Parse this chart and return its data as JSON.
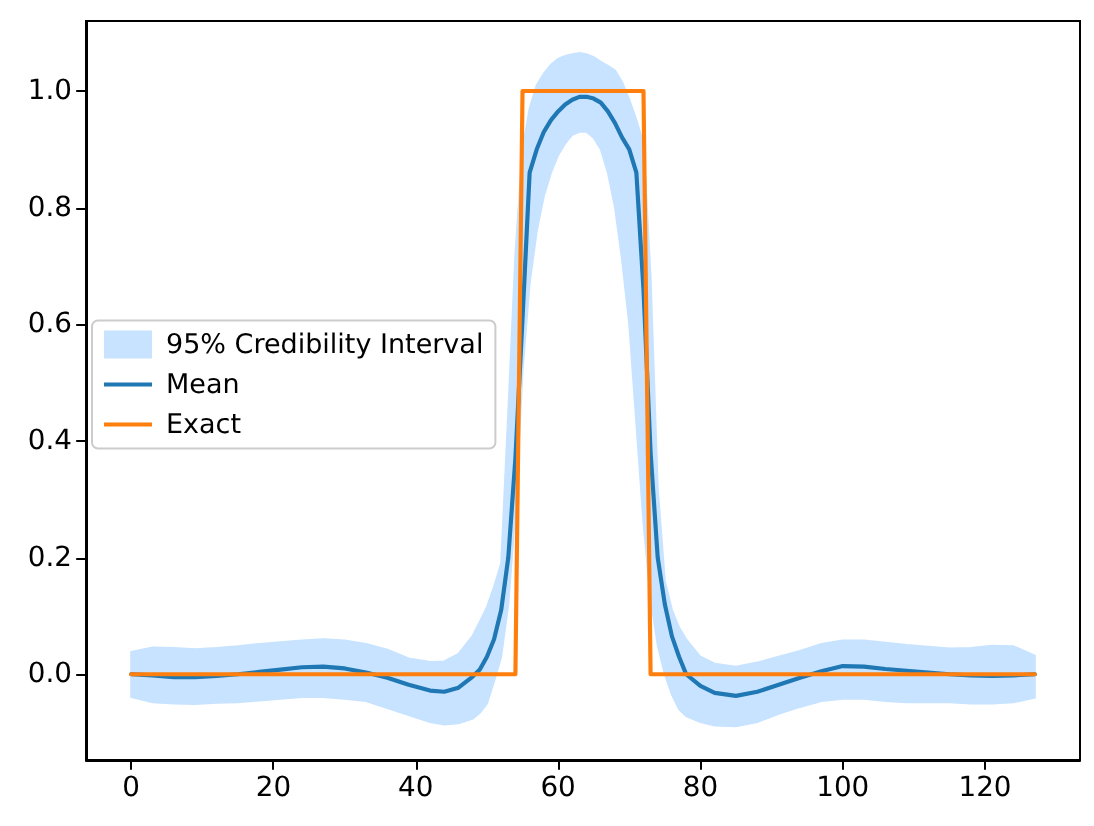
{
  "chart_data": {
    "type": "line",
    "xlim": [
      -6.35,
      133.35
    ],
    "xticks": [
      0,
      20,
      40,
      60,
      80,
      100,
      120
    ],
    "ylim": [
      -0.147,
      1.12
    ],
    "yticks": [
      {
        "value": 0,
        "label": "0.0"
      },
      0.2,
      0.4,
      0.6,
      0.8,
      {
        "value": 1,
        "label": "1.0"
      }
    ],
    "legend": "left",
    "series": [
      {
        "name": "95% Credibility Interval",
        "type": "area",
        "color": "#c7e3ff",
        "x": [
          0,
          3,
          6,
          9,
          12,
          15,
          18,
          21,
          24,
          27,
          30,
          33,
          36,
          39,
          42,
          44,
          46,
          48,
          49,
          50,
          51,
          52,
          53,
          54,
          55,
          56,
          57,
          58,
          59,
          60,
          61,
          62,
          63,
          64,
          65,
          66,
          67,
          68,
          69,
          70,
          71,
          72,
          73,
          74,
          75,
          76,
          77,
          78,
          80,
          82,
          85,
          88,
          91,
          94,
          97,
          100,
          103,
          106,
          109,
          112,
          115,
          118,
          121,
          124,
          127
        ],
        "values": [
          null,
          null,
          null,
          null,
          null,
          null,
          null,
          null,
          null,
          null,
          null,
          null,
          null,
          null,
          null,
          null,
          null,
          null,
          null,
          null,
          null,
          null,
          null,
          null,
          null,
          null,
          null,
          null,
          null,
          null,
          null,
          null,
          null,
          null,
          null,
          null,
          null,
          null,
          null,
          null,
          null,
          null,
          null,
          null,
          null,
          null,
          null,
          null,
          null,
          null,
          null,
          null,
          null,
          null,
          null,
          null,
          null,
          null,
          null,
          null,
          null,
          null,
          null,
          null,
          null
        ],
        "lower": [
          -0.039,
          -0.048,
          -0.05,
          -0.051,
          -0.049,
          -0.048,
          -0.045,
          -0.042,
          -0.039,
          -0.039,
          -0.042,
          -0.046,
          -0.058,
          -0.07,
          -0.082,
          -0.086,
          -0.084,
          -0.076,
          -0.066,
          -0.05,
          -0.012,
          0.03,
          0.12,
          0.28,
          0.52,
          0.67,
          0.76,
          0.82,
          0.86,
          0.89,
          0.91,
          0.925,
          0.93,
          0.93,
          0.92,
          0.9,
          0.86,
          0.8,
          0.71,
          0.6,
          0.43,
          0.26,
          0.13,
          0.05,
          0,
          -0.035,
          -0.06,
          -0.072,
          -0.082,
          -0.088,
          -0.089,
          -0.082,
          -0.068,
          -0.056,
          -0.046,
          -0.042,
          -0.042,
          -0.046,
          -0.048,
          -0.048,
          -0.048,
          -0.05,
          -0.05,
          -0.048,
          -0.04
        ],
        "upper": [
          0.038,
          0.046,
          0.045,
          0.043,
          0.045,
          0.048,
          0.052,
          0.055,
          0.058,
          0.06,
          0.058,
          0.052,
          0.042,
          0.027,
          0.021,
          0.022,
          0.035,
          0.066,
          0.09,
          0.115,
          0.15,
          0.19,
          0.45,
          0.72,
          0.9,
          0.97,
          1.01,
          1.03,
          1.045,
          1.055,
          1.06,
          1.063,
          1.065,
          1.063,
          1.058,
          1.05,
          1.043,
          1.035,
          1.015,
          0.985,
          0.95,
          0.91,
          0.68,
          0.32,
          0.16,
          0.11,
          0.08,
          0.06,
          0.03,
          0.018,
          0.013,
          0.02,
          0.03,
          0.04,
          0.052,
          0.058,
          0.058,
          0.054,
          0.05,
          0.047,
          0.044,
          0.045,
          0.049,
          0.048,
          0.032
        ]
      },
      {
        "name": "Mean",
        "color": "#1f77b4",
        "x": [
          0,
          3,
          6,
          9,
          12,
          15,
          18,
          21,
          24,
          27,
          30,
          33,
          36,
          39,
          42,
          44,
          46,
          48,
          49,
          50,
          51,
          52,
          53,
          54,
          55,
          56,
          57,
          58,
          59,
          60,
          61,
          62,
          63,
          64,
          65,
          66,
          67,
          68,
          69,
          70,
          71,
          72,
          73,
          74,
          75,
          76,
          77,
          78,
          80,
          82,
          85,
          88,
          91,
          94,
          97,
          100,
          103,
          106,
          109,
          112,
          115,
          118,
          121,
          124,
          127
        ],
        "values": [
          0,
          -0.002,
          -0.005,
          -0.005,
          -0.003,
          0,
          0.004,
          0.008,
          0.012,
          0.013,
          0.01,
          0.003,
          -0.006,
          -0.018,
          -0.028,
          -0.03,
          -0.023,
          -0.004,
          0.008,
          0.03,
          0.06,
          0.11,
          0.2,
          0.37,
          0.61,
          0.86,
          0.9,
          0.93,
          0.95,
          0.965,
          0.977,
          0.985,
          0.99,
          0.99,
          0.987,
          0.98,
          0.965,
          0.945,
          0.92,
          0.9,
          0.86,
          0.66,
          0.38,
          0.2,
          0.12,
          0.065,
          0.03,
          0,
          -0.02,
          -0.032,
          -0.037,
          -0.03,
          -0.018,
          -0.006,
          0.005,
          0.014,
          0.013,
          0.009,
          0.006,
          0.003,
          0,
          -0.002,
          -0.003,
          -0.002,
          0
        ]
      },
      {
        "name": "Exact",
        "color": "#ff7f0e",
        "x": [
          0,
          54,
          55,
          72,
          73,
          127
        ],
        "values": [
          0,
          0,
          1,
          1,
          0,
          0
        ]
      }
    ]
  }
}
